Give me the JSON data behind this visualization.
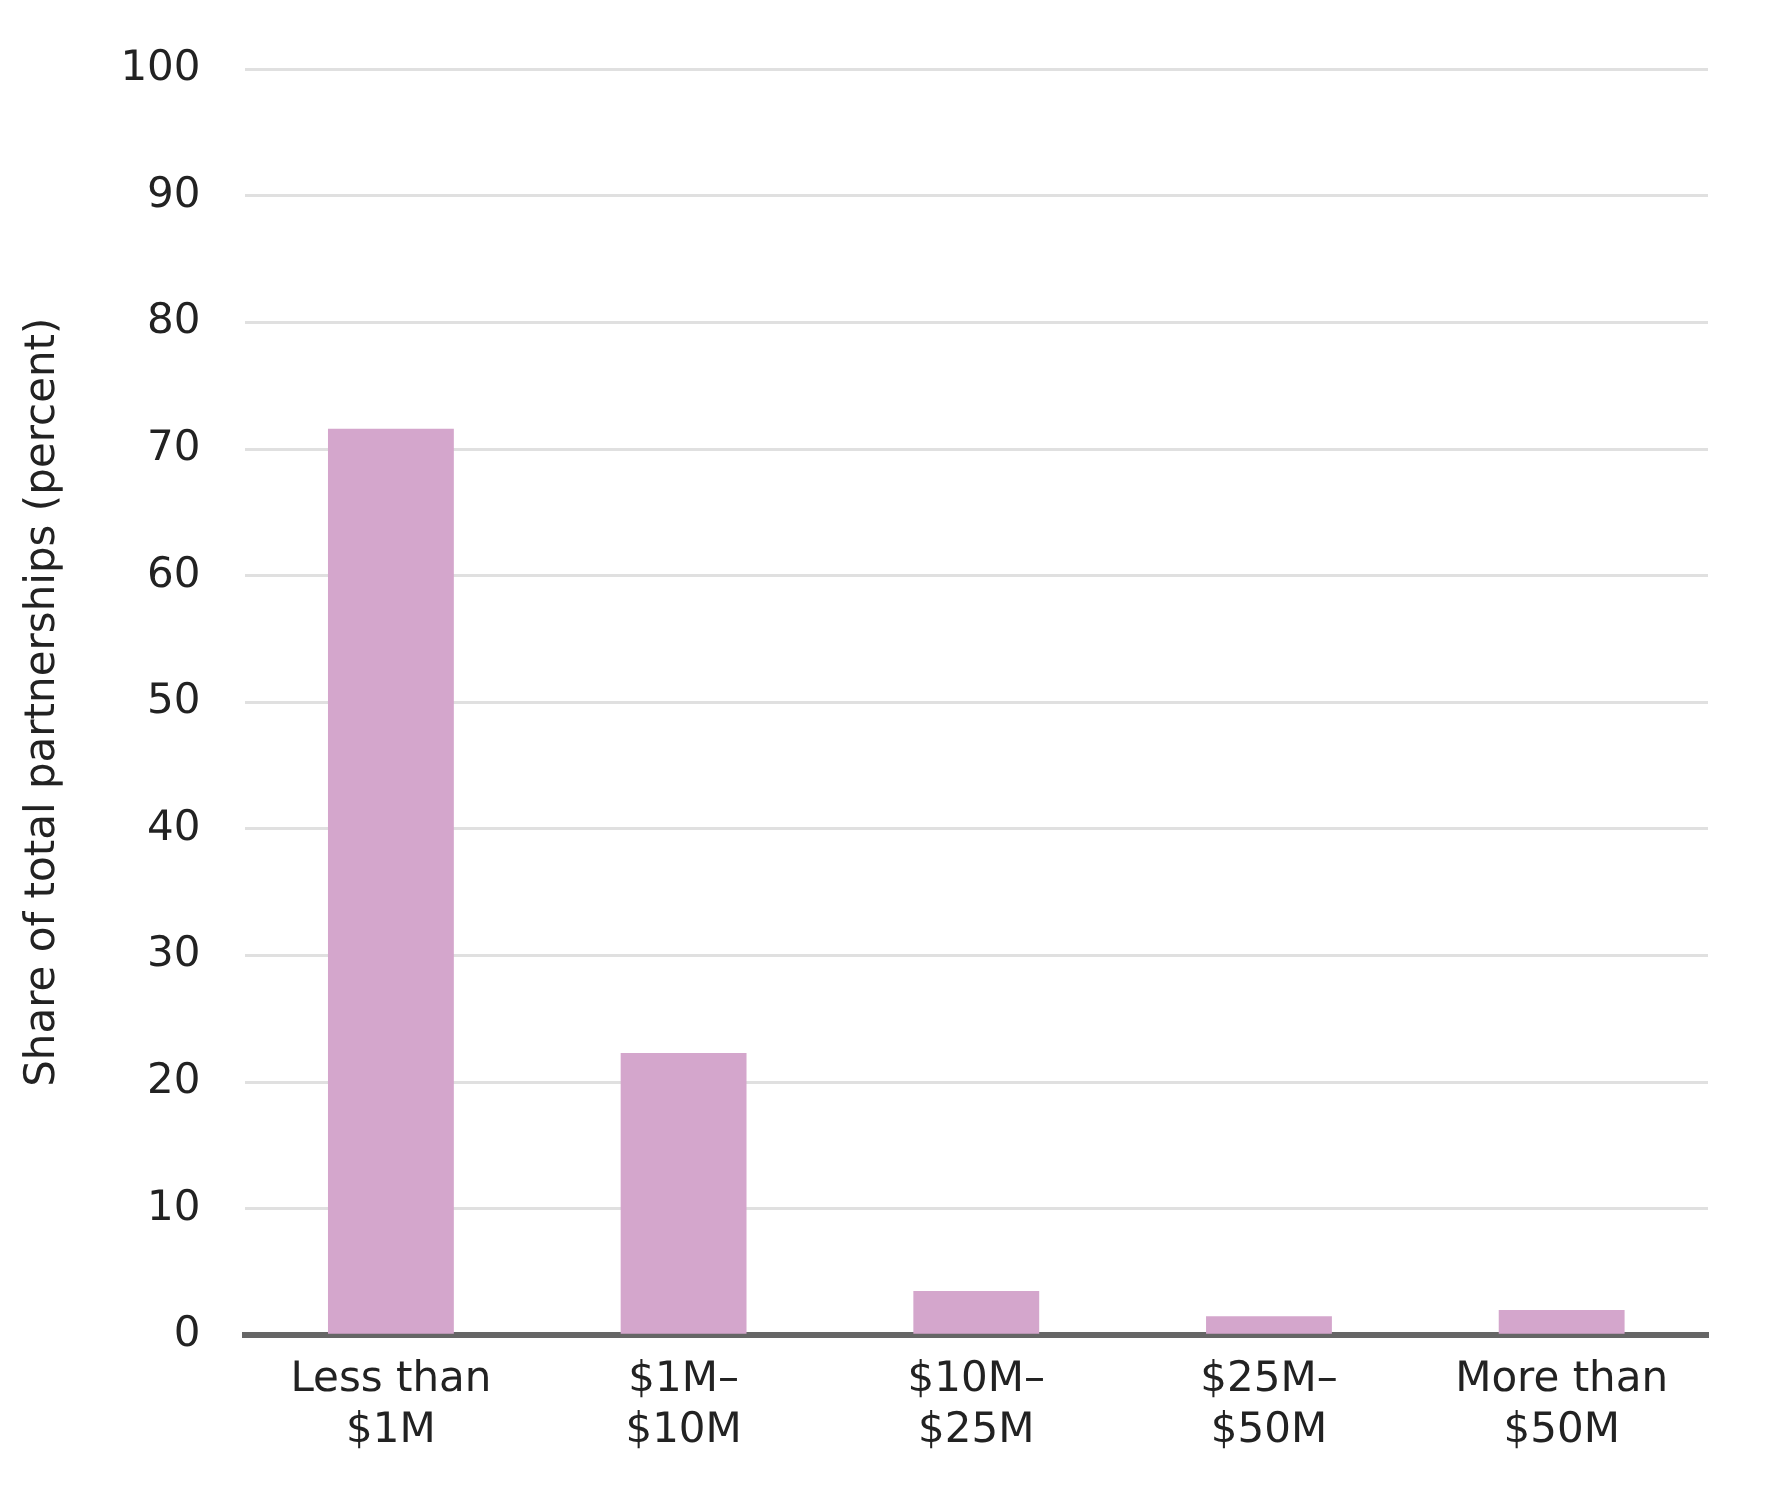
{
  "chart_data": {
    "type": "bar",
    "ylabel": "Share of total partnerships (percent)",
    "categories": [
      "Less than\n$1M",
      "$1M–\n$10M",
      "$10M–\n$25M",
      "$25M–\n$50M",
      "More than\n$50M"
    ],
    "values": [
      71.6,
      22.3,
      3.5,
      1.5,
      2.0
    ],
    "color": "#d4a6cc",
    "ylim": [
      0,
      100
    ],
    "yticks": [
      0,
      10,
      20,
      30,
      40,
      50,
      60,
      70,
      80,
      90,
      100
    ],
    "grid": "y"
  }
}
